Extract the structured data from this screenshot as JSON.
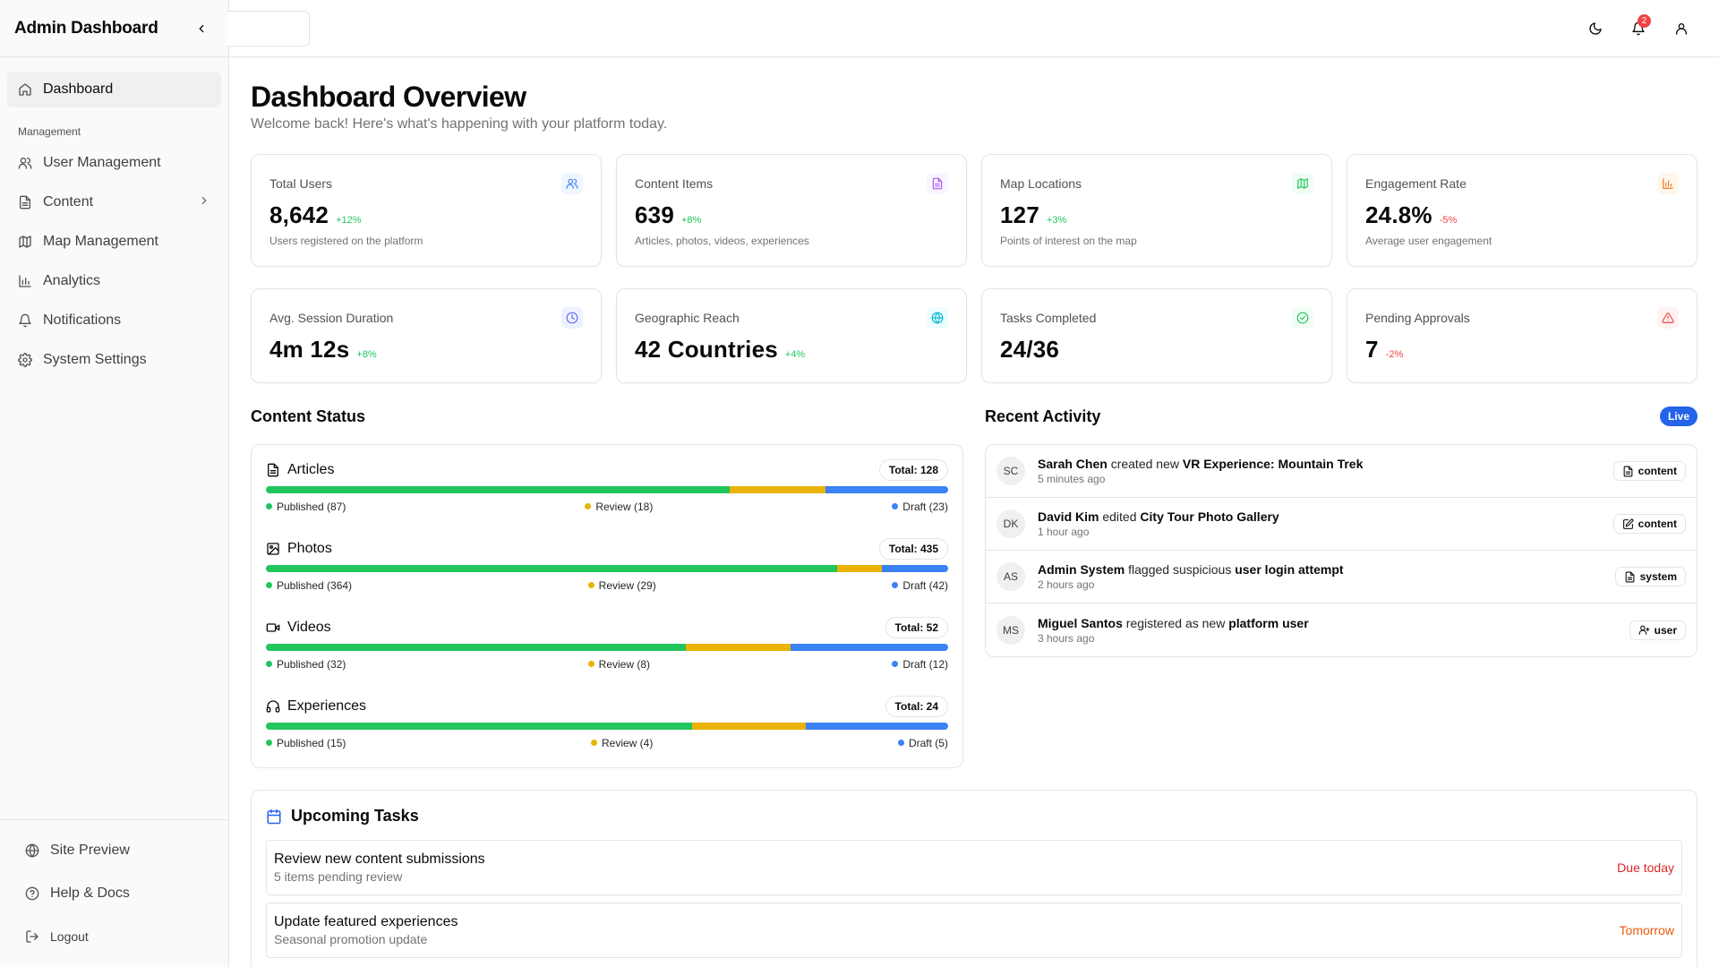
{
  "sidebar": {
    "title": "Admin Dashboard",
    "items_top": [
      {
        "label": "Dashboard",
        "icon": "home-icon"
      }
    ],
    "group_label": "Management",
    "items": [
      {
        "label": "User Management",
        "icon": "users-icon"
      },
      {
        "label": "Content",
        "icon": "file-icon"
      },
      {
        "label": "Map Management",
        "icon": "map-icon"
      },
      {
        "label": "Analytics",
        "icon": "bar-chart-icon"
      },
      {
        "label": "Notifications",
        "icon": "bell-icon"
      },
      {
        "label": "System Settings",
        "icon": "gear-icon"
      }
    ],
    "footer": [
      {
        "label": "Site Preview",
        "icon": "globe-icon"
      },
      {
        "label": "Help & Docs",
        "icon": "help-icon"
      },
      {
        "label": "Logout",
        "icon": "logout-icon"
      }
    ]
  },
  "topbar": {
    "search_placeholder": "",
    "notification_count": "2"
  },
  "header": {
    "title": "Dashboard Overview",
    "subtitle": "Welcome back! Here's what's happening with your platform today."
  },
  "stats": [
    {
      "label": "Total Users",
      "value": "8,642",
      "delta": "+12%",
      "trend": "up",
      "desc": "Users registered on the platform",
      "icon": "users-icon",
      "color": "#3b82f6"
    },
    {
      "label": "Content Items",
      "value": "639",
      "delta": "+8%",
      "trend": "up",
      "desc": "Articles, photos, videos, experiences",
      "icon": "file-icon",
      "color": "#a855f7"
    },
    {
      "label": "Map Locations",
      "value": "127",
      "delta": "+3%",
      "trend": "up",
      "desc": "Points of interest on the map",
      "icon": "map-icon",
      "color": "#22c55e"
    },
    {
      "label": "Engagement Rate",
      "value": "24.8%",
      "delta": "-5%",
      "trend": "down",
      "desc": "Average user engagement",
      "icon": "bar-chart-icon",
      "color": "#f97316"
    },
    {
      "label": "Avg. Session Duration",
      "value": "4m 12s",
      "delta": "+8%",
      "trend": "up",
      "icon": "clock-icon",
      "color": "#6366f1"
    },
    {
      "label": "Geographic Reach",
      "value": "42 Countries",
      "delta": "+4%",
      "trend": "up",
      "icon": "globe-icon",
      "color": "#06b6d4"
    },
    {
      "label": "Tasks Completed",
      "value": "24/36",
      "delta": "",
      "trend": "",
      "icon": "check-circle-icon",
      "color": "#22c55e"
    },
    {
      "label": "Pending Approvals",
      "value": "7",
      "delta": "-2%",
      "trend": "down",
      "icon": "alert-triangle-icon",
      "color": "#ef4444"
    }
  ],
  "content_status": {
    "title": "Content Status",
    "items": [
      {
        "name": "Articles",
        "icon": "file-icon",
        "total": "Total: 128",
        "published": 87,
        "review": 18,
        "draft": 23,
        "published_label": "Published (87)",
        "review_label": "Review (18)",
        "draft_label": "Draft (23)"
      },
      {
        "name": "Photos",
        "icon": "image-icon",
        "total": "Total: 435",
        "published": 364,
        "review": 29,
        "draft": 42,
        "published_label": "Published (364)",
        "review_label": "Review (29)",
        "draft_label": "Draft (42)"
      },
      {
        "name": "Videos",
        "icon": "video-icon",
        "total": "Total: 52",
        "published": 32,
        "review": 8,
        "draft": 12,
        "published_label": "Published (32)",
        "review_label": "Review (8)",
        "draft_label": "Draft (12)"
      },
      {
        "name": "Experiences",
        "icon": "headset-icon",
        "total": "Total: 24",
        "published": 15,
        "review": 4,
        "draft": 5,
        "published_label": "Published (15)",
        "review_label": "Review (4)",
        "draft_label": "Draft (5)"
      }
    ],
    "colors": {
      "published": "#22c55e",
      "review": "#eab308",
      "draft": "#3b82f6"
    }
  },
  "activity": {
    "title": "Recent Activity",
    "badge": "Live",
    "items": [
      {
        "initials": "SC",
        "actor": "Sarah Chen",
        "verb": " created new ",
        "object": "VR Experience: Mountain Trek",
        "time": "5 minutes ago",
        "tag": "content",
        "tag_icon": "file-icon"
      },
      {
        "initials": "DK",
        "actor": "David Kim",
        "verb": " edited ",
        "object": "City Tour Photo Gallery",
        "time": "1 hour ago",
        "tag": "content",
        "tag_icon": "edit-icon"
      },
      {
        "initials": "AS",
        "actor": "Admin System",
        "verb": " flagged suspicious ",
        "object": "user login attempt",
        "time": "2 hours ago",
        "tag": "system",
        "tag_icon": "file-icon"
      },
      {
        "initials": "MS",
        "actor": "Miguel Santos",
        "verb": " registered as new ",
        "object": "platform user",
        "time": "3 hours ago",
        "tag": "user",
        "tag_icon": "user-plus-icon"
      }
    ]
  },
  "tasks": {
    "title": "Upcoming Tasks",
    "items": [
      {
        "name": "Review new content submissions",
        "desc": "5 items pending review",
        "due": "Due today",
        "due_color": "#dc2626"
      },
      {
        "name": "Update featured experiences",
        "desc": "Seasonal promotion update",
        "due": "Tomorrow",
        "due_color": "#ea580c"
      }
    ]
  }
}
